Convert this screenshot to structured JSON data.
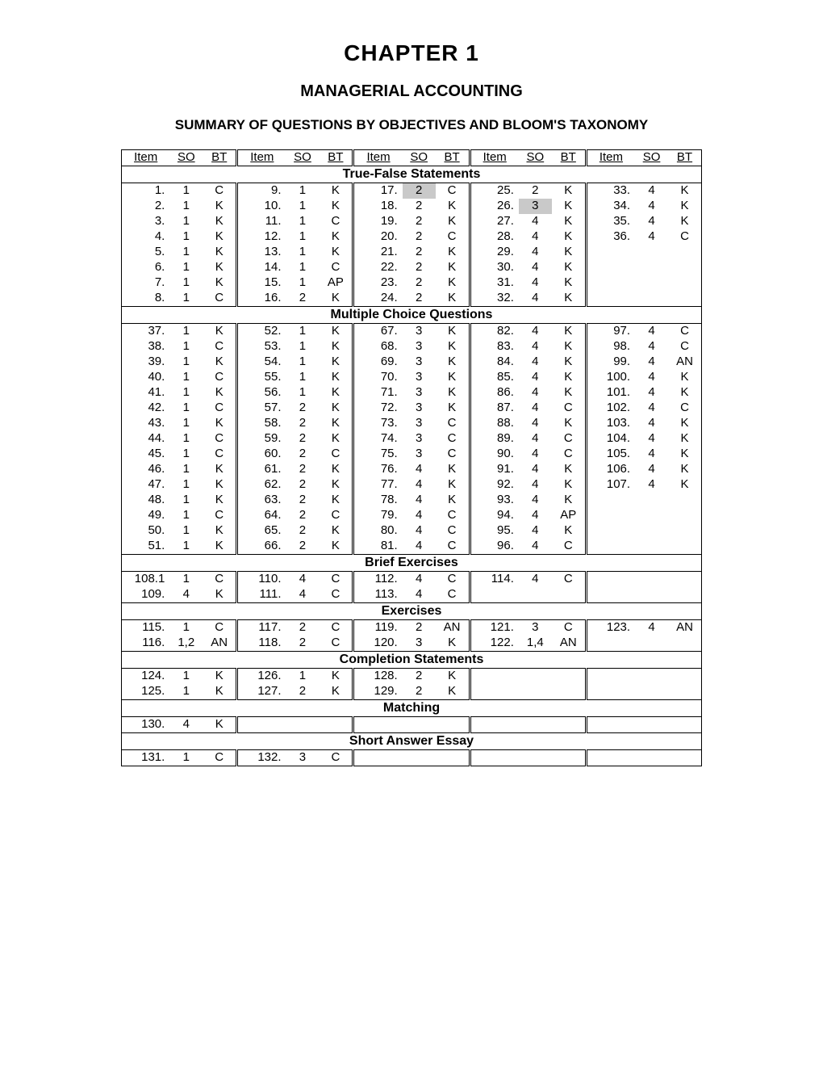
{
  "titles": {
    "chapter": "CHAPTER 1",
    "subtitle": "MANAGERIAL ACCOUNTING",
    "summary": "SUMMARY OF QUESTIONS BY OBJECTIVES AND BLOOM'S TAXONOMY"
  },
  "column_headers": [
    "Item",
    "SO",
    "BT"
  ],
  "highlight_color": "#c9c9c9",
  "sections": [
    {
      "title": "True-False Statements",
      "rows": [
        [
          {
            "item": "1.",
            "so": "1",
            "bt": "C"
          },
          {
            "item": "9.",
            "so": "1",
            "bt": "K"
          },
          {
            "item": "17.",
            "so": "2",
            "bt": "C",
            "highlight_so": true
          },
          {
            "item": "25.",
            "so": "2",
            "bt": "K"
          },
          {
            "item": "33.",
            "so": "4",
            "bt": "K"
          }
        ],
        [
          {
            "item": "2.",
            "so": "1",
            "bt": "K"
          },
          {
            "item": "10.",
            "so": "1",
            "bt": "K"
          },
          {
            "item": "18.",
            "so": "2",
            "bt": "K"
          },
          {
            "item": "26.",
            "so": "3",
            "bt": "K",
            "highlight_so": true
          },
          {
            "item": "34.",
            "so": "4",
            "bt": "K"
          }
        ],
        [
          {
            "item": "3.",
            "so": "1",
            "bt": "K"
          },
          {
            "item": "11.",
            "so": "1",
            "bt": "C"
          },
          {
            "item": "19.",
            "so": "2",
            "bt": "K"
          },
          {
            "item": "27.",
            "so": "4",
            "bt": "K"
          },
          {
            "item": "35.",
            "so": "4",
            "bt": "K"
          }
        ],
        [
          {
            "item": "4.",
            "so": "1",
            "bt": "K"
          },
          {
            "item": "12.",
            "so": "1",
            "bt": "K"
          },
          {
            "item": "20.",
            "so": "2",
            "bt": "C"
          },
          {
            "item": "28.",
            "so": "4",
            "bt": "K"
          },
          {
            "item": "36.",
            "so": "4",
            "bt": "C"
          }
        ],
        [
          {
            "item": "5.",
            "so": "1",
            "bt": "K"
          },
          {
            "item": "13.",
            "so": "1",
            "bt": "K"
          },
          {
            "item": "21.",
            "so": "2",
            "bt": "K"
          },
          {
            "item": "29.",
            "so": "4",
            "bt": "K"
          },
          {
            "item": "",
            "so": "",
            "bt": ""
          }
        ],
        [
          {
            "item": "6.",
            "so": "1",
            "bt": "K"
          },
          {
            "item": "14.",
            "so": "1",
            "bt": "C"
          },
          {
            "item": "22.",
            "so": "2",
            "bt": "K"
          },
          {
            "item": "30.",
            "so": "4",
            "bt": "K"
          },
          {
            "item": "",
            "so": "",
            "bt": ""
          }
        ],
        [
          {
            "item": "7.",
            "so": "1",
            "bt": "K"
          },
          {
            "item": "15.",
            "so": "1",
            "bt": "AP"
          },
          {
            "item": "23.",
            "so": "2",
            "bt": "K"
          },
          {
            "item": "31.",
            "so": "4",
            "bt": "K"
          },
          {
            "item": "",
            "so": "",
            "bt": ""
          }
        ],
        [
          {
            "item": "8.",
            "so": "1",
            "bt": "C"
          },
          {
            "item": "16.",
            "so": "2",
            "bt": "K"
          },
          {
            "item": "24.",
            "so": "2",
            "bt": "K"
          },
          {
            "item": "32.",
            "so": "4",
            "bt": "K"
          },
          {
            "item": "",
            "so": "",
            "bt": ""
          }
        ]
      ]
    },
    {
      "title": "Multiple Choice Questions",
      "rows": [
        [
          {
            "item": "37.",
            "so": "1",
            "bt": "K"
          },
          {
            "item": "52.",
            "so": "1",
            "bt": "K"
          },
          {
            "item": "67.",
            "so": "3",
            "bt": "K"
          },
          {
            "item": "82.",
            "so": "4",
            "bt": "K"
          },
          {
            "item": "97.",
            "so": "4",
            "bt": "C"
          }
        ],
        [
          {
            "item": "38.",
            "so": "1",
            "bt": "C"
          },
          {
            "item": "53.",
            "so": "1",
            "bt": "K"
          },
          {
            "item": "68.",
            "so": "3",
            "bt": "K"
          },
          {
            "item": "83.",
            "so": "4",
            "bt": "K"
          },
          {
            "item": "98.",
            "so": "4",
            "bt": "C"
          }
        ],
        [
          {
            "item": "39.",
            "so": "1",
            "bt": "K"
          },
          {
            "item": "54.",
            "so": "1",
            "bt": "K"
          },
          {
            "item": "69.",
            "so": "3",
            "bt": "K"
          },
          {
            "item": "84.",
            "so": "4",
            "bt": "K"
          },
          {
            "item": "99.",
            "so": "4",
            "bt": "AN"
          }
        ],
        [
          {
            "item": "40.",
            "so": "1",
            "bt": "C"
          },
          {
            "item": "55.",
            "so": "1",
            "bt": "K"
          },
          {
            "item": "70.",
            "so": "3",
            "bt": "K"
          },
          {
            "item": "85.",
            "so": "4",
            "bt": "K"
          },
          {
            "item": "100.",
            "so": "4",
            "bt": "K"
          }
        ],
        [
          {
            "item": "41.",
            "so": "1",
            "bt": "K"
          },
          {
            "item": "56.",
            "so": "1",
            "bt": "K"
          },
          {
            "item": "71.",
            "so": "3",
            "bt": "K"
          },
          {
            "item": "86.",
            "so": "4",
            "bt": "K"
          },
          {
            "item": "101.",
            "so": "4",
            "bt": "K"
          }
        ],
        [
          {
            "item": "42.",
            "so": "1",
            "bt": "C"
          },
          {
            "item": "57.",
            "so": "2",
            "bt": "K"
          },
          {
            "item": "72.",
            "so": "3",
            "bt": "K"
          },
          {
            "item": "87.",
            "so": "4",
            "bt": "C"
          },
          {
            "item": "102.",
            "so": "4",
            "bt": "C"
          }
        ],
        [
          {
            "item": "43.",
            "so": "1",
            "bt": "K"
          },
          {
            "item": "58.",
            "so": "2",
            "bt": "K"
          },
          {
            "item": "73.",
            "so": "3",
            "bt": "C"
          },
          {
            "item": "88.",
            "so": "4",
            "bt": "K"
          },
          {
            "item": "103.",
            "so": "4",
            "bt": "K"
          }
        ],
        [
          {
            "item": "44.",
            "so": "1",
            "bt": "C"
          },
          {
            "item": "59.",
            "so": "2",
            "bt": "K"
          },
          {
            "item": "74.",
            "so": "3",
            "bt": "C"
          },
          {
            "item": "89.",
            "so": "4",
            "bt": "C"
          },
          {
            "item": "104.",
            "so": "4",
            "bt": "K"
          }
        ],
        [
          {
            "item": "45.",
            "so": "1",
            "bt": "C"
          },
          {
            "item": "60.",
            "so": "2",
            "bt": "C"
          },
          {
            "item": "75.",
            "so": "3",
            "bt": "C"
          },
          {
            "item": "90.",
            "so": "4",
            "bt": "C"
          },
          {
            "item": "105.",
            "so": "4",
            "bt": "K"
          }
        ],
        [
          {
            "item": "46.",
            "so": "1",
            "bt": "K"
          },
          {
            "item": "61.",
            "so": "2",
            "bt": "K"
          },
          {
            "item": "76.",
            "so": "4",
            "bt": "K"
          },
          {
            "item": "91.",
            "so": "4",
            "bt": "K"
          },
          {
            "item": "106.",
            "so": "4",
            "bt": "K"
          }
        ],
        [
          {
            "item": "47.",
            "so": "1",
            "bt": "K"
          },
          {
            "item": "62.",
            "so": "2",
            "bt": "K"
          },
          {
            "item": "77.",
            "so": "4",
            "bt": "K"
          },
          {
            "item": "92.",
            "so": "4",
            "bt": "K"
          },
          {
            "item": "107.",
            "so": "4",
            "bt": "K"
          }
        ],
        [
          {
            "item": "48.",
            "so": "1",
            "bt": "K"
          },
          {
            "item": "63.",
            "so": "2",
            "bt": "K"
          },
          {
            "item": "78.",
            "so": "4",
            "bt": "K"
          },
          {
            "item": "93.",
            "so": "4",
            "bt": "K"
          },
          {
            "item": "",
            "so": "",
            "bt": ""
          }
        ],
        [
          {
            "item": "49.",
            "so": "1",
            "bt": "C"
          },
          {
            "item": "64.",
            "so": "2",
            "bt": "C"
          },
          {
            "item": "79.",
            "so": "4",
            "bt": "C"
          },
          {
            "item": "94.",
            "so": "4",
            "bt": "AP"
          },
          {
            "item": "",
            "so": "",
            "bt": ""
          }
        ],
        [
          {
            "item": "50.",
            "so": "1",
            "bt": "K"
          },
          {
            "item": "65.",
            "so": "2",
            "bt": "K"
          },
          {
            "item": "80.",
            "so": "4",
            "bt": "C"
          },
          {
            "item": "95.",
            "so": "4",
            "bt": "K"
          },
          {
            "item": "",
            "so": "",
            "bt": ""
          }
        ],
        [
          {
            "item": "51.",
            "so": "1",
            "bt": "K"
          },
          {
            "item": "66.",
            "so": "2",
            "bt": "K"
          },
          {
            "item": "81.",
            "so": "4",
            "bt": "C"
          },
          {
            "item": "96.",
            "so": "4",
            "bt": "C"
          },
          {
            "item": "",
            "so": "",
            "bt": ""
          }
        ]
      ]
    },
    {
      "title": "Brief Exercises",
      "rows": [
        [
          {
            "item": "108.1",
            "so": "1",
            "bt": "C"
          },
          {
            "item": "110.",
            "so": "4",
            "bt": "C"
          },
          {
            "item": "112.",
            "so": "4",
            "bt": "C"
          },
          {
            "item": "114.",
            "so": "4",
            "bt": "C"
          },
          {
            "item": "",
            "so": "",
            "bt": ""
          }
        ],
        [
          {
            "item": "109.",
            "so": "4",
            "bt": "K"
          },
          {
            "item": "111.",
            "so": "4",
            "bt": "C"
          },
          {
            "item": "113.",
            "so": "4",
            "bt": "C"
          },
          {
            "item": "",
            "so": "",
            "bt": ""
          },
          {
            "item": "",
            "so": "",
            "bt": ""
          }
        ]
      ]
    },
    {
      "title": "Exercises",
      "rows": [
        [
          {
            "item": "115.",
            "so": "1",
            "bt": "C"
          },
          {
            "item": "117.",
            "so": "2",
            "bt": "C"
          },
          {
            "item": "119.",
            "so": "2",
            "bt": "AN"
          },
          {
            "item": "121.",
            "so": "3",
            "bt": "C"
          },
          {
            "item": "123.",
            "so": "4",
            "bt": "AN"
          }
        ],
        [
          {
            "item": "116.",
            "so": "1,2",
            "bt": "AN"
          },
          {
            "item": "118.",
            "so": "2",
            "bt": "C"
          },
          {
            "item": "120.",
            "so": "3",
            "bt": "K"
          },
          {
            "item": "122.",
            "so": "1,4",
            "bt": "AN"
          },
          {
            "item": "",
            "so": "",
            "bt": ""
          }
        ]
      ]
    },
    {
      "title": "Completion Statements",
      "rows": [
        [
          {
            "item": "124.",
            "so": "1",
            "bt": "K"
          },
          {
            "item": "126.",
            "so": "1",
            "bt": "K"
          },
          {
            "item": "128.",
            "so": "2",
            "bt": "K"
          },
          {
            "item": "",
            "so": "",
            "bt": ""
          },
          {
            "item": "",
            "so": "",
            "bt": ""
          }
        ],
        [
          {
            "item": "125.",
            "so": "1",
            "bt": "K"
          },
          {
            "item": "127.",
            "so": "2",
            "bt": "K"
          },
          {
            "item": "129.",
            "so": "2",
            "bt": "K"
          },
          {
            "item": "",
            "so": "",
            "bt": ""
          },
          {
            "item": "",
            "so": "",
            "bt": ""
          }
        ]
      ]
    },
    {
      "title": "Matching",
      "rows": [
        [
          {
            "item": "130.",
            "so": "4",
            "bt": "K"
          },
          {
            "item": "",
            "so": "",
            "bt": ""
          },
          {
            "item": "",
            "so": "",
            "bt": ""
          },
          {
            "item": "",
            "so": "",
            "bt": ""
          },
          {
            "item": "",
            "so": "",
            "bt": ""
          }
        ]
      ]
    },
    {
      "title": "Short Answer Essay",
      "rows": [
        [
          {
            "item": "131.",
            "so": "1",
            "bt": "C"
          },
          {
            "item": "132.",
            "so": "3",
            "bt": "C"
          },
          {
            "item": "",
            "so": "",
            "bt": ""
          },
          {
            "item": "",
            "so": "",
            "bt": ""
          },
          {
            "item": "",
            "so": "",
            "bt": ""
          }
        ]
      ]
    }
  ]
}
